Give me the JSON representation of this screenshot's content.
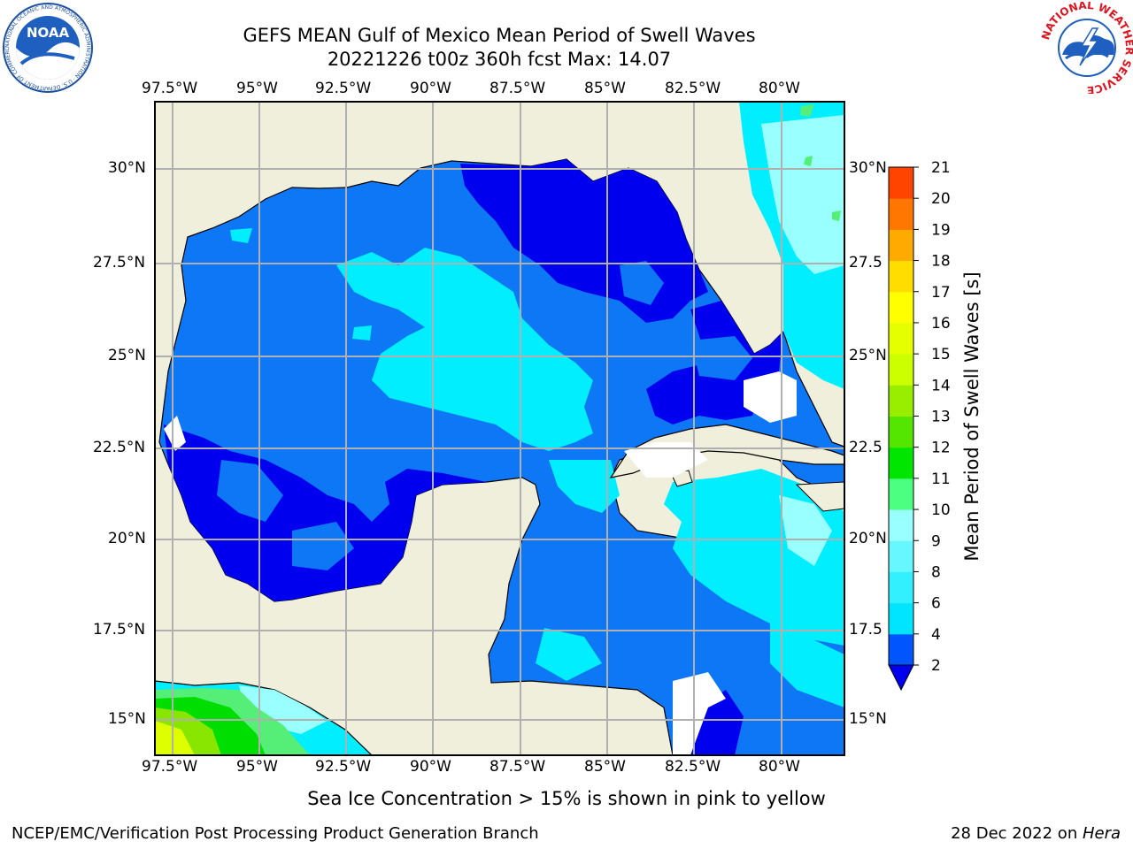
{
  "title_line1": "GEFS MEAN Gulf of Mexico Mean Period of Swell Waves",
  "title_line2": "20221226 t00z 360h fcst   Max: 14.07",
  "lon_labels": [
    "97.5°W",
    "95°W",
    "92.5°W",
    "90°W",
    "87.5°W",
    "85°W",
    "82.5°W",
    "80°W"
  ],
  "lat_labels_left": [
    "30°N",
    "27.5°N",
    "25°N",
    "22.5°N",
    "20°N",
    "17.5°N",
    "15°N"
  ],
  "lat_labels_right": [
    "30°N",
    "27.5",
    "25°N",
    "22.5",
    "20°N",
    "17.5",
    "15°N"
  ],
  "colorbar": {
    "label": "Mean Period of Swell Waves [s]",
    "ticks": [
      "2",
      "4",
      "6",
      "8",
      "9",
      "10",
      "11",
      "12",
      "13",
      "14",
      "15",
      "16",
      "17",
      "18",
      "19",
      "20",
      "21"
    ],
    "colors": [
      "#0055ff",
      "#00e5ff",
      "#33f0ff",
      "#66f7ff",
      "#99ffff",
      "#4dff80",
      "#00e600",
      "#55e600",
      "#99ee00",
      "#ccff00",
      "#e6ff00",
      "#ffff00",
      "#ffdd00",
      "#ffaa00",
      "#ff7700",
      "#ff4400",
      "#ff0000"
    ],
    "under_color": "#0000ee"
  },
  "note": "Sea Ice Concentration > 15% is shown in pink to yellow",
  "footer_left": "NCEP/EMC/Verification Post Processing Product Generation Branch",
  "footer_right_date": "28 Dec 2022 on ",
  "footer_right_machine": "Hera",
  "logo_noaa_text": "NOAA",
  "logo_noaa_ring": "NATIONAL OCEANIC AND ATMOSPHERIC ADMINISTRATION · U.S. DEPARTMENT OF COMMERCE",
  "logo_nws_ring": "NATIONAL WEATHER SERVICE"
}
